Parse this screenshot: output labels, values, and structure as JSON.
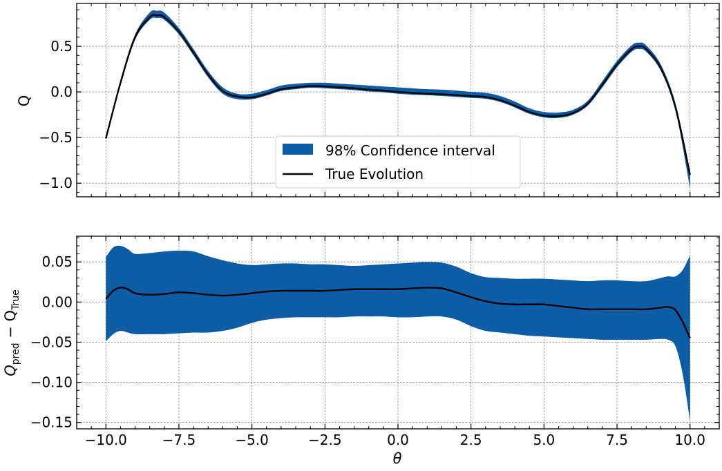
{
  "colors": {
    "band": "#0c5da5",
    "line": "#000000",
    "grid": "#808080"
  },
  "chart_data": [
    {
      "type": "area",
      "panel": "top",
      "ylabel": "Q",
      "xlim": [
        -11.0,
        11.0
      ],
      "ylim": [
        -1.15,
        0.97
      ],
      "xticks": [
        -10.0,
        -7.5,
        -5.0,
        -2.5,
        0.0,
        2.5,
        5.0,
        7.5,
        10.0
      ],
      "yticks": [
        0.5,
        0.0,
        -0.5,
        -1.0
      ],
      "ytick_labels": [
        "0.5",
        "0.0",
        "−0.5",
        "−1.0"
      ],
      "legend": {
        "placement": "lower-center",
        "entries": [
          "98% Confidence interval",
          "True Evolution"
        ]
      },
      "series": [
        {
          "name": "True Evolution",
          "x": [
            -10,
            -9.5,
            -9,
            -8.5,
            -8.25,
            -8,
            -7.5,
            -7,
            -6.5,
            -6,
            -5.5,
            -5,
            -4.5,
            -4,
            -3.5,
            -3,
            -2.5,
            -2,
            -1.5,
            -1,
            -0.5,
            0,
            0.5,
            1,
            1.5,
            2,
            2.5,
            3,
            3.5,
            4,
            4.5,
            5,
            5.5,
            6,
            6.5,
            7,
            7.5,
            8,
            8.25,
            8.5,
            9,
            9.5,
            10
          ],
          "y": [
            -0.51,
            0.1,
            0.6,
            0.82,
            0.84,
            0.82,
            0.66,
            0.43,
            0.19,
            0.01,
            -0.05,
            -0.06,
            -0.02,
            0.03,
            0.05,
            0.065,
            0.06,
            0.05,
            0.04,
            0.025,
            0.015,
            0.0,
            -0.01,
            -0.02,
            -0.025,
            -0.035,
            -0.045,
            -0.055,
            -0.09,
            -0.15,
            -0.22,
            -0.26,
            -0.265,
            -0.23,
            -0.13,
            0.08,
            0.3,
            0.47,
            0.5,
            0.47,
            0.26,
            -0.17,
            -0.91
          ]
        },
        {
          "name": "98% Confidence interval",
          "x": [
            -10,
            -9.5,
            -9,
            -8.5,
            -8.25,
            -8,
            -7.5,
            -7,
            -6.5,
            -6,
            -5.5,
            -5,
            -4.5,
            -4,
            -3.5,
            -3,
            -2.5,
            -2,
            -1.5,
            -1,
            -0.5,
            0,
            0.5,
            1,
            1.5,
            2,
            2.5,
            3,
            3.5,
            4,
            4.5,
            5,
            5.5,
            6,
            6.5,
            7,
            7.5,
            8,
            8.25,
            8.5,
            9,
            9.5,
            10
          ],
          "lower": [
            -0.52,
            0.07,
            0.57,
            0.79,
            0.81,
            0.79,
            0.63,
            0.4,
            0.16,
            -0.02,
            -0.08,
            -0.08,
            -0.04,
            0.01,
            0.03,
            0.045,
            0.04,
            0.03,
            0.02,
            0.005,
            -0.005,
            -0.02,
            -0.03,
            -0.035,
            -0.045,
            -0.055,
            -0.065,
            -0.075,
            -0.11,
            -0.17,
            -0.24,
            -0.28,
            -0.285,
            -0.25,
            -0.15,
            0.05,
            0.27,
            0.44,
            0.47,
            0.44,
            0.23,
            -0.2,
            -1.06
          ],
          "upper": [
            -0.5,
            0.13,
            0.63,
            0.87,
            0.89,
            0.87,
            0.7,
            0.47,
            0.23,
            0.05,
            -0.02,
            -0.02,
            0.02,
            0.07,
            0.09,
            0.1,
            0.1,
            0.09,
            0.08,
            0.07,
            0.06,
            0.05,
            0.04,
            0.03,
            0.025,
            0.015,
            0.0,
            -0.01,
            -0.045,
            -0.105,
            -0.18,
            -0.22,
            -0.225,
            -0.195,
            -0.095,
            0.12,
            0.34,
            0.51,
            0.54,
            0.51,
            0.3,
            -0.12,
            -0.86
          ]
        }
      ]
    },
    {
      "type": "area",
      "panel": "bottom",
      "xlabel": "θ",
      "ylabel_main": "Q",
      "ylabel_sub1": "pred",
      "ylabel_minus": " − Q",
      "ylabel_sub2": "True",
      "xlim": [
        -11.0,
        11.0
      ],
      "ylim": [
        -0.158,
        0.082
      ],
      "xticks": [
        -10.0,
        -7.5,
        -5.0,
        -2.5,
        0.0,
        2.5,
        5.0,
        7.5,
        10.0
      ],
      "xtick_labels": [
        "−10.0",
        "−7.5",
        "−5.0",
        "−2.5",
        "0.0",
        "2.5",
        "5.0",
        "7.5",
        "10.0"
      ],
      "yticks": [
        0.05,
        0.0,
        -0.05,
        -0.1,
        -0.15
      ],
      "ytick_labels": [
        "0.05",
        "0.00",
        "−0.05",
        "−0.10",
        "−0.15"
      ],
      "series": [
        {
          "name": "Q_pred - Q_True",
          "x": [
            -10,
            -9.75,
            -9.5,
            -9.25,
            -9,
            -8.5,
            -8,
            -7.5,
            -7,
            -6.5,
            -6,
            -5.5,
            -5,
            -4.5,
            -4,
            -3.5,
            -3,
            -2.5,
            -2,
            -1.5,
            -1,
            -0.5,
            0,
            0.5,
            1,
            1.5,
            2,
            2.5,
            3,
            3.5,
            4,
            4.5,
            5,
            5.5,
            6,
            6.5,
            7,
            7.5,
            8,
            8.5,
            9,
            9.25,
            9.5,
            9.75,
            10
          ],
          "y": [
            0.004,
            0.014,
            0.018,
            0.016,
            0.011,
            0.009,
            0.01,
            0.012,
            0.011,
            0.009,
            0.008,
            0.009,
            0.011,
            0.013,
            0.014,
            0.014,
            0.014,
            0.014,
            0.015,
            0.016,
            0.016,
            0.016,
            0.016,
            0.017,
            0.018,
            0.017,
            0.012,
            0.006,
            0.001,
            -0.002,
            -0.003,
            -0.003,
            -0.003,
            -0.005,
            -0.007,
            -0.009,
            -0.009,
            -0.009,
            -0.009,
            -0.009,
            -0.007,
            -0.006,
            -0.01,
            -0.025,
            -0.045
          ]
        },
        {
          "name": "98% Confidence interval",
          "x": [
            -10,
            -9.75,
            -9.5,
            -9.25,
            -9,
            -8.5,
            -8,
            -7.5,
            -7,
            -6.5,
            -6,
            -5.5,
            -5,
            -4.5,
            -4,
            -3.5,
            -3,
            -2.5,
            -2,
            -1.5,
            -1,
            -0.5,
            0,
            0.5,
            1,
            1.5,
            2,
            2.5,
            3,
            3.5,
            4,
            4.5,
            5,
            5.5,
            6,
            6.5,
            7,
            7.5,
            8,
            8.5,
            9,
            9.25,
            9.5,
            9.75,
            10
          ],
          "lower": [
            -0.049,
            -0.04,
            -0.036,
            -0.038,
            -0.04,
            -0.04,
            -0.04,
            -0.039,
            -0.038,
            -0.038,
            -0.036,
            -0.032,
            -0.026,
            -0.022,
            -0.02,
            -0.019,
            -0.019,
            -0.019,
            -0.019,
            -0.018,
            -0.018,
            -0.018,
            -0.019,
            -0.019,
            -0.018,
            -0.018,
            -0.022,
            -0.03,
            -0.036,
            -0.038,
            -0.04,
            -0.042,
            -0.043,
            -0.044,
            -0.045,
            -0.046,
            -0.047,
            -0.047,
            -0.047,
            -0.047,
            -0.046,
            -0.047,
            -0.055,
            -0.09,
            -0.148
          ],
          "upper": [
            0.056,
            0.068,
            0.07,
            0.066,
            0.06,
            0.061,
            0.063,
            0.064,
            0.063,
            0.057,
            0.052,
            0.048,
            0.046,
            0.047,
            0.048,
            0.048,
            0.047,
            0.047,
            0.046,
            0.045,
            0.046,
            0.047,
            0.048,
            0.049,
            0.05,
            0.049,
            0.044,
            0.036,
            0.031,
            0.03,
            0.029,
            0.029,
            0.029,
            0.028,
            0.027,
            0.026,
            0.027,
            0.027,
            0.026,
            0.026,
            0.03,
            0.032,
            0.032,
            0.04,
            0.058
          ]
        }
      ]
    }
  ]
}
